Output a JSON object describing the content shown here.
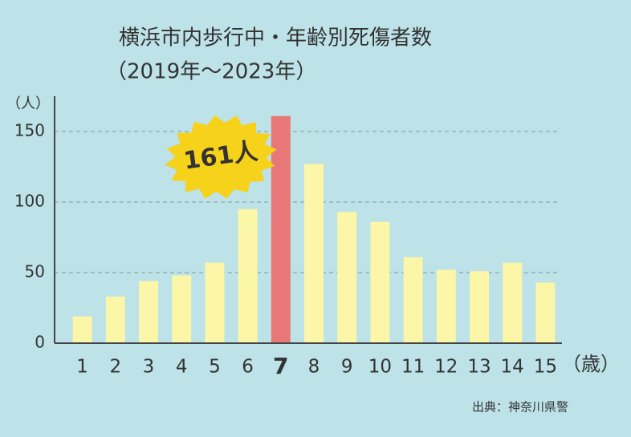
{
  "chart_data": {
    "type": "bar",
    "title": "横浜市内歩行中・年齢別死傷者数",
    "subtitle": "（2019年～2023年）",
    "y_unit": "（人）",
    "x_unit": "（歳）",
    "source": "出典：神奈川県警",
    "categories": [
      "1",
      "2",
      "3",
      "4",
      "5",
      "6",
      "7",
      "8",
      "9",
      "10",
      "11",
      "12",
      "13",
      "14",
      "15"
    ],
    "values": [
      19,
      33,
      44,
      48,
      57,
      95,
      161,
      127,
      93,
      86,
      61,
      52,
      51,
      57,
      43
    ],
    "value_labels": [
      null,
      null,
      null,
      null,
      null,
      null,
      "161人",
      null,
      null,
      null,
      null,
      null,
      null,
      null,
      null
    ],
    "color": "#fbf6a8",
    "highlight_color": "#e87878",
    "ylim": [
      0,
      175
    ],
    "yticks": [
      0,
      50,
      100,
      150
    ],
    "grid": true
  }
}
